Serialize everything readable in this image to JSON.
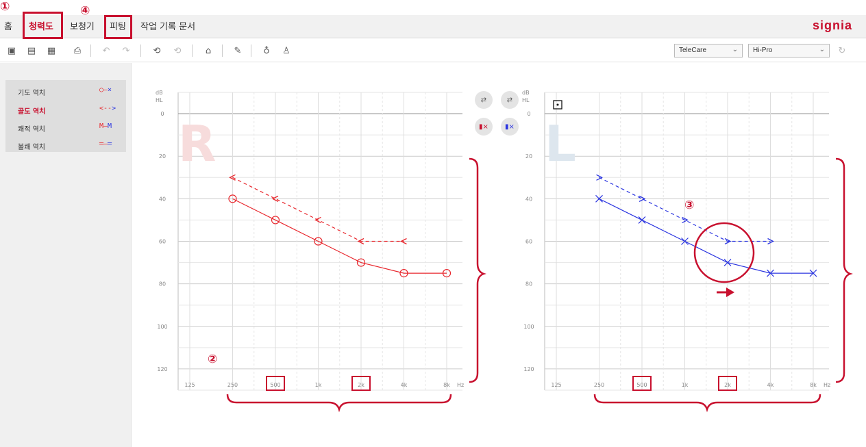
{
  "nav": {
    "tabs": [
      "홈",
      "청력도",
      "보청기",
      "피팅",
      "작업 기록 문서"
    ],
    "active": "청력도",
    "logo": "signia"
  },
  "callouts": [
    "①",
    "④",
    "②",
    "③"
  ],
  "toolbar": {
    "connection": "TeleCare",
    "programmer": "Hi-Pro"
  },
  "legend": [
    {
      "label": "기도 역치",
      "symbol": "○—×",
      "color": "#c8102e"
    },
    {
      "label": "골도 역치",
      "symbol": "<-->",
      "color": "#c8102e",
      "active": true
    },
    {
      "label": "쾌적 역치",
      "symbol": "M—M",
      "color": "#c8102e"
    },
    {
      "label": "불쾌 역치",
      "symbol": "═—═",
      "color": "#c8102e"
    }
  ],
  "chart_data": [
    {
      "type": "line",
      "ear": "R",
      "ylabel": "dB HL",
      "xlabel": "Hz",
      "x_ticks": [
        "125",
        "250",
        "500",
        "1k",
        "2k",
        "4k",
        "8k"
      ],
      "y_ticks": [
        0,
        20,
        40,
        60,
        80,
        100,
        120
      ],
      "ylim": [
        -10,
        130
      ],
      "grid": true,
      "series": [
        {
          "name": "기도 역치",
          "style": "solid",
          "marker": "circle",
          "color": "#e8262c",
          "x": [
            "250",
            "500",
            "1k",
            "2k",
            "4k",
            "8k"
          ],
          "values": [
            40,
            50,
            60,
            70,
            75,
            75
          ]
        },
        {
          "name": "골도 역치",
          "style": "dashed",
          "marker": "lt",
          "color": "#e8262c",
          "x": [
            "250",
            "500",
            "1k",
            "2k",
            "4k"
          ],
          "values": [
            30,
            40,
            50,
            60,
            60
          ]
        }
      ],
      "highlighted_ticks": [
        "500",
        "2k"
      ]
    },
    {
      "type": "line",
      "ear": "L",
      "ylabel": "dB HL",
      "xlabel": "Hz",
      "x_ticks": [
        "125",
        "250",
        "500",
        "1k",
        "2k",
        "4k",
        "8k"
      ],
      "y_ticks": [
        0,
        20,
        40,
        60,
        80,
        100,
        120
      ],
      "ylim": [
        -10,
        130
      ],
      "grid": true,
      "series": [
        {
          "name": "기도 역치",
          "style": "solid",
          "marker": "x",
          "color": "#2b35e0",
          "x": [
            "250",
            "500",
            "1k",
            "2k",
            "4k",
            "8k"
          ],
          "values": [
            40,
            50,
            60,
            70,
            75,
            75
          ]
        },
        {
          "name": "골도 역치",
          "style": "dashed",
          "marker": "gt",
          "color": "#2b35e0",
          "x": [
            "250",
            "500",
            "1k",
            "2k",
            "4k"
          ],
          "values": [
            30,
            40,
            50,
            60,
            60
          ]
        }
      ],
      "highlighted_ticks": [
        "500",
        "2k"
      ]
    }
  ],
  "axis_text": {
    "db": "dB",
    "hl": "HL",
    "hz": "Hz"
  },
  "ear_letters": [
    "R",
    "L"
  ]
}
